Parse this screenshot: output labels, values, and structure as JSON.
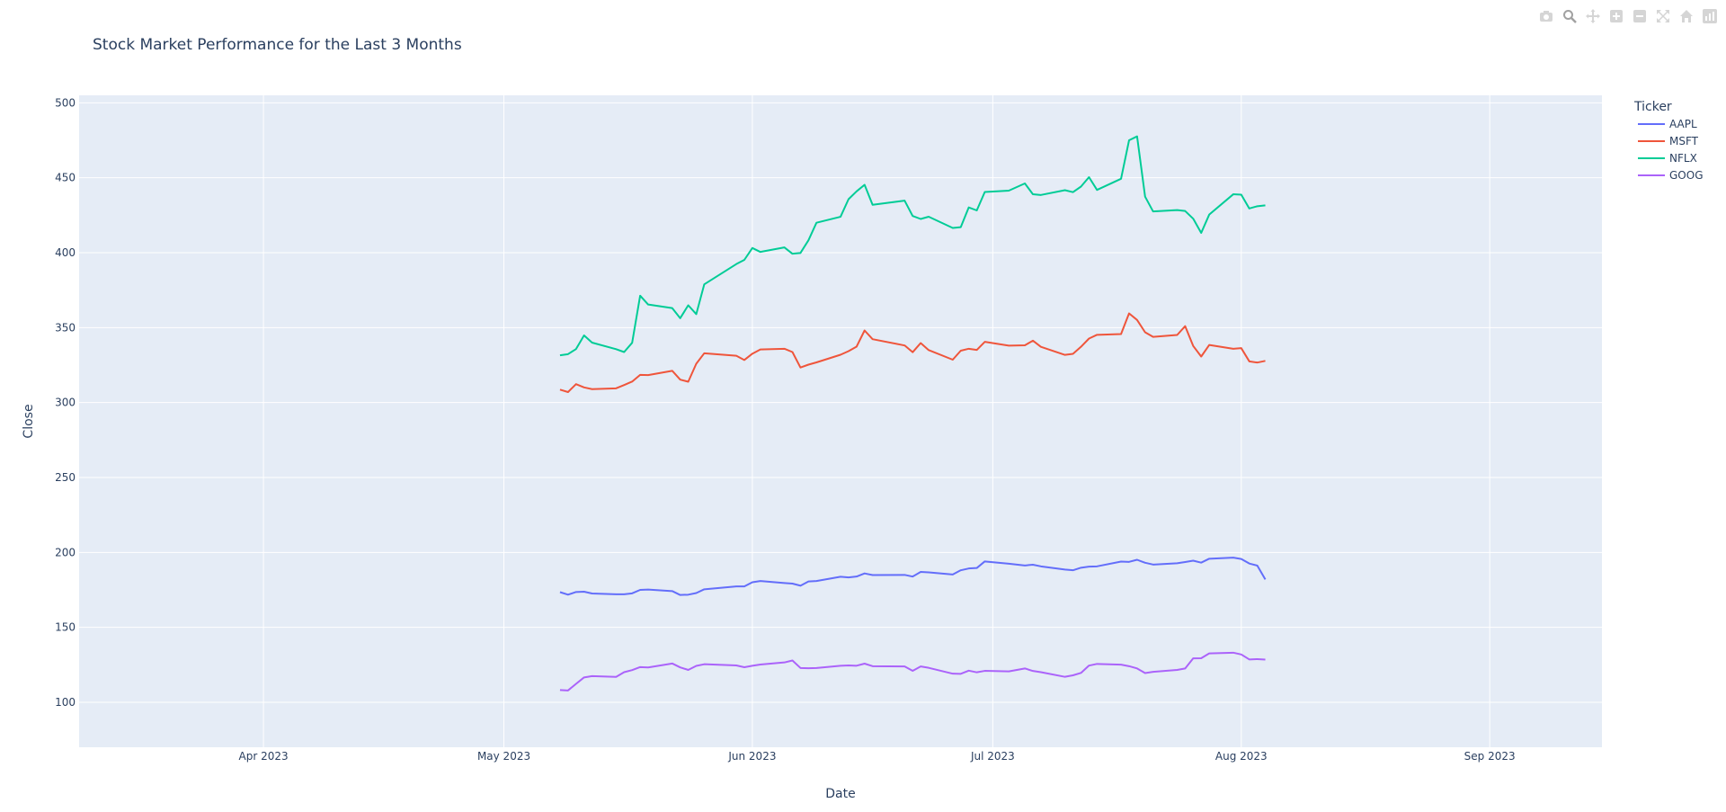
{
  "chart_data": {
    "type": "line",
    "title": "Stock Market Performance for the Last 3 Months",
    "xlabel": "Date",
    "ylabel": "Close",
    "legend": {
      "title": "Ticker",
      "placement": "top-right, outside plot"
    },
    "xlim": [
      "2023-03-09",
      "2023-09-15"
    ],
    "ylim": [
      70,
      505
    ],
    "x_ticks": [
      {
        "date": "2023-04-01",
        "label": "Apr 2023"
      },
      {
        "date": "2023-05-01",
        "label": "May 2023"
      },
      {
        "date": "2023-06-01",
        "label": "Jun 2023"
      },
      {
        "date": "2023-07-01",
        "label": "Jul 2023"
      },
      {
        "date": "2023-08-01",
        "label": "Aug 2023"
      },
      {
        "date": "2023-09-01",
        "label": "Sep 2023"
      }
    ],
    "y_ticks": [
      100,
      150,
      200,
      250,
      300,
      350,
      400,
      450,
      500
    ],
    "grid": true,
    "plot_background": "#e5ecf6",
    "series": [
      {
        "name": "AAPL",
        "color": "#636efa",
        "points": [
          [
            "2023-05-08",
            173.5
          ],
          [
            "2023-05-09",
            171.8
          ],
          [
            "2023-05-10",
            173.6
          ],
          [
            "2023-05-11",
            173.8
          ],
          [
            "2023-05-12",
            172.6
          ],
          [
            "2023-05-15",
            172.1
          ],
          [
            "2023-05-16",
            172.1
          ],
          [
            "2023-05-17",
            172.7
          ],
          [
            "2023-05-18",
            175.0
          ],
          [
            "2023-05-19",
            175.2
          ],
          [
            "2023-05-22",
            174.2
          ],
          [
            "2023-05-23",
            171.6
          ],
          [
            "2023-05-24",
            171.8
          ],
          [
            "2023-05-25",
            172.9
          ],
          [
            "2023-05-26",
            175.4
          ],
          [
            "2023-05-30",
            177.3
          ],
          [
            "2023-05-31",
            177.3
          ],
          [
            "2023-06-01",
            180.1
          ],
          [
            "2023-06-02",
            180.9
          ],
          [
            "2023-06-05",
            179.6
          ],
          [
            "2023-06-06",
            179.2
          ],
          [
            "2023-06-07",
            177.8
          ],
          [
            "2023-06-08",
            180.6
          ],
          [
            "2023-06-09",
            180.9
          ],
          [
            "2023-06-12",
            183.8
          ],
          [
            "2023-06-13",
            183.3
          ],
          [
            "2023-06-14",
            183.9
          ],
          [
            "2023-06-15",
            186.0
          ],
          [
            "2023-06-16",
            184.9
          ],
          [
            "2023-06-20",
            185.0
          ],
          [
            "2023-06-21",
            183.9
          ],
          [
            "2023-06-22",
            187.0
          ],
          [
            "2023-06-23",
            186.7
          ],
          [
            "2023-06-26",
            185.3
          ],
          [
            "2023-06-27",
            188.1
          ],
          [
            "2023-06-28",
            189.3
          ],
          [
            "2023-06-29",
            189.6
          ],
          [
            "2023-06-30",
            194.0
          ],
          [
            "2023-07-03",
            192.5
          ],
          [
            "2023-07-05",
            191.3
          ],
          [
            "2023-07-06",
            191.8
          ],
          [
            "2023-07-07",
            190.7
          ],
          [
            "2023-07-10",
            188.6
          ],
          [
            "2023-07-11",
            188.1
          ],
          [
            "2023-07-12",
            189.8
          ],
          [
            "2023-07-13",
            190.5
          ],
          [
            "2023-07-14",
            190.7
          ],
          [
            "2023-07-17",
            193.9
          ],
          [
            "2023-07-18",
            193.7
          ],
          [
            "2023-07-19",
            195.1
          ],
          [
            "2023-07-20",
            193.1
          ],
          [
            "2023-07-21",
            191.9
          ],
          [
            "2023-07-24",
            192.8
          ],
          [
            "2023-07-25",
            193.6
          ],
          [
            "2023-07-26",
            194.5
          ],
          [
            "2023-07-27",
            193.2
          ],
          [
            "2023-07-28",
            195.8
          ],
          [
            "2023-07-31",
            196.5
          ],
          [
            "2023-08-01",
            195.6
          ],
          [
            "2023-08-02",
            192.6
          ],
          [
            "2023-08-03",
            191.2
          ],
          [
            "2023-08-04",
            181.99
          ]
        ]
      },
      {
        "name": "MSFT",
        "color": "#ef553b",
        "points": [
          [
            "2023-05-08",
            308.6
          ],
          [
            "2023-05-09",
            307.0
          ],
          [
            "2023-05-10",
            312.3
          ],
          [
            "2023-05-11",
            310.1
          ],
          [
            "2023-05-12",
            308.97
          ],
          [
            "2023-05-15",
            309.5
          ],
          [
            "2023-05-16",
            311.7
          ],
          [
            "2023-05-17",
            314.0
          ],
          [
            "2023-05-18",
            318.5
          ],
          [
            "2023-05-19",
            318.3
          ],
          [
            "2023-05-22",
            321.2
          ],
          [
            "2023-05-23",
            315.3
          ],
          [
            "2023-05-24",
            313.9
          ],
          [
            "2023-05-25",
            325.9
          ],
          [
            "2023-05-26",
            332.9
          ],
          [
            "2023-05-30",
            331.2
          ],
          [
            "2023-05-31",
            328.4
          ],
          [
            "2023-06-01",
            332.6
          ],
          [
            "2023-06-02",
            335.4
          ],
          [
            "2023-06-05",
            335.9
          ],
          [
            "2023-06-06",
            333.7
          ],
          [
            "2023-06-07",
            323.4
          ],
          [
            "2023-06-08",
            325.3
          ],
          [
            "2023-06-09",
            326.8
          ],
          [
            "2023-06-12",
            331.9
          ],
          [
            "2023-06-13",
            334.3
          ],
          [
            "2023-06-14",
            337.3
          ],
          [
            "2023-06-15",
            348.1
          ],
          [
            "2023-06-16",
            342.3
          ],
          [
            "2023-06-20",
            338.1
          ],
          [
            "2023-06-21",
            333.6
          ],
          [
            "2023-06-22",
            339.7
          ],
          [
            "2023-06-23",
            335.0
          ],
          [
            "2023-06-26",
            328.6
          ],
          [
            "2023-06-27",
            334.6
          ],
          [
            "2023-06-28",
            335.9
          ],
          [
            "2023-06-29",
            335.1
          ],
          [
            "2023-06-30",
            340.5
          ],
          [
            "2023-07-03",
            337.99
          ],
          [
            "2023-07-05",
            338.2
          ],
          [
            "2023-07-06",
            341.3
          ],
          [
            "2023-07-07",
            337.2
          ],
          [
            "2023-07-10",
            331.8
          ],
          [
            "2023-07-11",
            332.5
          ],
          [
            "2023-07-12",
            337.2
          ],
          [
            "2023-07-13",
            342.7
          ],
          [
            "2023-07-14",
            345.2
          ],
          [
            "2023-07-17",
            345.7
          ],
          [
            "2023-07-18",
            359.5
          ],
          [
            "2023-07-19",
            355.1
          ],
          [
            "2023-07-20",
            346.9
          ],
          [
            "2023-07-21",
            343.8
          ],
          [
            "2023-07-24",
            345.1
          ],
          [
            "2023-07-25",
            350.98
          ],
          [
            "2023-07-26",
            337.8
          ],
          [
            "2023-07-27",
            330.7
          ],
          [
            "2023-07-28",
            338.4
          ],
          [
            "2023-07-31",
            335.9
          ],
          [
            "2023-08-01",
            336.3
          ],
          [
            "2023-08-02",
            327.5
          ],
          [
            "2023-08-03",
            326.7
          ],
          [
            "2023-08-04",
            327.8
          ]
        ]
      },
      {
        "name": "NFLX",
        "color": "#00cc96",
        "points": [
          [
            "2023-05-08",
            331.5
          ],
          [
            "2023-05-09",
            332.3
          ],
          [
            "2023-05-10",
            335.7
          ],
          [
            "2023-05-11",
            344.8
          ],
          [
            "2023-05-12",
            340.0
          ],
          [
            "2023-05-15",
            335.6
          ],
          [
            "2023-05-16",
            333.7
          ],
          [
            "2023-05-17",
            339.9
          ],
          [
            "2023-05-18",
            371.3
          ],
          [
            "2023-05-19",
            365.4
          ],
          [
            "2023-05-22",
            363.0
          ],
          [
            "2023-05-23",
            356.3
          ],
          [
            "2023-05-24",
            364.9
          ],
          [
            "2023-05-25",
            359.0
          ],
          [
            "2023-05-26",
            378.9
          ],
          [
            "2023-05-30",
            392.4
          ],
          [
            "2023-05-31",
            395.2
          ],
          [
            "2023-06-01",
            403.1
          ],
          [
            "2023-06-02",
            400.5
          ],
          [
            "2023-06-05",
            403.5
          ],
          [
            "2023-06-06",
            399.3
          ],
          [
            "2023-06-07",
            399.8
          ],
          [
            "2023-06-08",
            408.3
          ],
          [
            "2023-06-09",
            420.0
          ],
          [
            "2023-06-12",
            423.97
          ],
          [
            "2023-06-13",
            435.7
          ],
          [
            "2023-06-14",
            440.9
          ],
          [
            "2023-06-15",
            445.3
          ],
          [
            "2023-06-16",
            431.96
          ],
          [
            "2023-06-20",
            434.7
          ],
          [
            "2023-06-21",
            424.5
          ],
          [
            "2023-06-22",
            422.5
          ],
          [
            "2023-06-23",
            424.0
          ],
          [
            "2023-06-26",
            416.5
          ],
          [
            "2023-06-27",
            417.0
          ],
          [
            "2023-06-28",
            430.2
          ],
          [
            "2023-06-29",
            428.2
          ],
          [
            "2023-06-30",
            440.5
          ],
          [
            "2023-07-03",
            441.4
          ],
          [
            "2023-07-05",
            446.2
          ],
          [
            "2023-07-06",
            439.0
          ],
          [
            "2023-07-07",
            438.5
          ],
          [
            "2023-07-10",
            441.7
          ],
          [
            "2023-07-11",
            440.4
          ],
          [
            "2023-07-12",
            444.1
          ],
          [
            "2023-07-13",
            450.4
          ],
          [
            "2023-07-14",
            441.9
          ],
          [
            "2023-07-17",
            449.3
          ],
          [
            "2023-07-18",
            475.0
          ],
          [
            "2023-07-19",
            477.6
          ],
          [
            "2023-07-20",
            437.4
          ],
          [
            "2023-07-21",
            427.5
          ],
          [
            "2023-07-24",
            428.4
          ],
          [
            "2023-07-25",
            427.8
          ],
          [
            "2023-07-26",
            422.7
          ],
          [
            "2023-07-27",
            413.2
          ],
          [
            "2023-07-28",
            425.4
          ],
          [
            "2023-07-31",
            438.97
          ],
          [
            "2023-08-01",
            438.7
          ],
          [
            "2023-08-02",
            429.5
          ],
          [
            "2023-08-03",
            431.0
          ],
          [
            "2023-08-04",
            431.6
          ]
        ]
      },
      {
        "name": "GOOG",
        "color": "#ab63fa",
        "points": [
          [
            "2023-05-08",
            108.2
          ],
          [
            "2023-05-09",
            107.9
          ],
          [
            "2023-05-10",
            112.3
          ],
          [
            "2023-05-11",
            116.6
          ],
          [
            "2023-05-12",
            117.5
          ],
          [
            "2023-05-15",
            116.96
          ],
          [
            "2023-05-16",
            120.1
          ],
          [
            "2023-05-17",
            121.5
          ],
          [
            "2023-05-18",
            123.5
          ],
          [
            "2023-05-19",
            123.25
          ],
          [
            "2023-05-22",
            125.9
          ],
          [
            "2023-05-23",
            123.3
          ],
          [
            "2023-05-24",
            121.6
          ],
          [
            "2023-05-25",
            124.3
          ],
          [
            "2023-05-26",
            125.4
          ],
          [
            "2023-05-30",
            124.6
          ],
          [
            "2023-05-31",
            123.4
          ],
          [
            "2023-06-01",
            124.4
          ],
          [
            "2023-06-02",
            125.2
          ],
          [
            "2023-06-05",
            126.6
          ],
          [
            "2023-06-06",
            127.9
          ],
          [
            "2023-06-07",
            122.9
          ],
          [
            "2023-06-08",
            122.7
          ],
          [
            "2023-06-09",
            122.9
          ],
          [
            "2023-06-12",
            124.4
          ],
          [
            "2023-06-13",
            124.6
          ],
          [
            "2023-06-14",
            124.4
          ],
          [
            "2023-06-15",
            125.8
          ],
          [
            "2023-06-16",
            124.1
          ],
          [
            "2023-06-20",
            123.9
          ],
          [
            "2023-06-21",
            121.0
          ],
          [
            "2023-06-22",
            123.9
          ],
          [
            "2023-06-23",
            123.0
          ],
          [
            "2023-06-26",
            119.1
          ],
          [
            "2023-06-27",
            119.0
          ],
          [
            "2023-06-28",
            121.1
          ],
          [
            "2023-06-29",
            120.0
          ],
          [
            "2023-06-30",
            120.97
          ],
          [
            "2023-07-03",
            120.6
          ],
          [
            "2023-07-05",
            122.6
          ],
          [
            "2023-07-06",
            120.9
          ],
          [
            "2023-07-07",
            120.1
          ],
          [
            "2023-07-10",
            117.0
          ],
          [
            "2023-07-11",
            118.0
          ],
          [
            "2023-07-12",
            119.6
          ],
          [
            "2023-07-13",
            124.5
          ],
          [
            "2023-07-14",
            125.6
          ],
          [
            "2023-07-17",
            125.1
          ],
          [
            "2023-07-18",
            124.1
          ],
          [
            "2023-07-19",
            122.6
          ],
          [
            "2023-07-20",
            119.5
          ],
          [
            "2023-07-21",
            120.3
          ],
          [
            "2023-07-24",
            121.6
          ],
          [
            "2023-07-25",
            122.6
          ],
          [
            "2023-07-26",
            129.3
          ],
          [
            "2023-07-27",
            129.4
          ],
          [
            "2023-07-28",
            132.6
          ],
          [
            "2023-07-31",
            133.1
          ],
          [
            "2023-08-01",
            131.9
          ],
          [
            "2023-08-02",
            128.6
          ],
          [
            "2023-08-03",
            128.8
          ],
          [
            "2023-08-04",
            128.5
          ]
        ]
      }
    ]
  },
  "modebar": {
    "buttons": [
      "camera-icon",
      "zoom-icon",
      "pan-icon",
      "zoom-in-icon",
      "zoom-out-icon",
      "autoscale-icon",
      "home-icon",
      "plotly-logo-icon"
    ]
  }
}
